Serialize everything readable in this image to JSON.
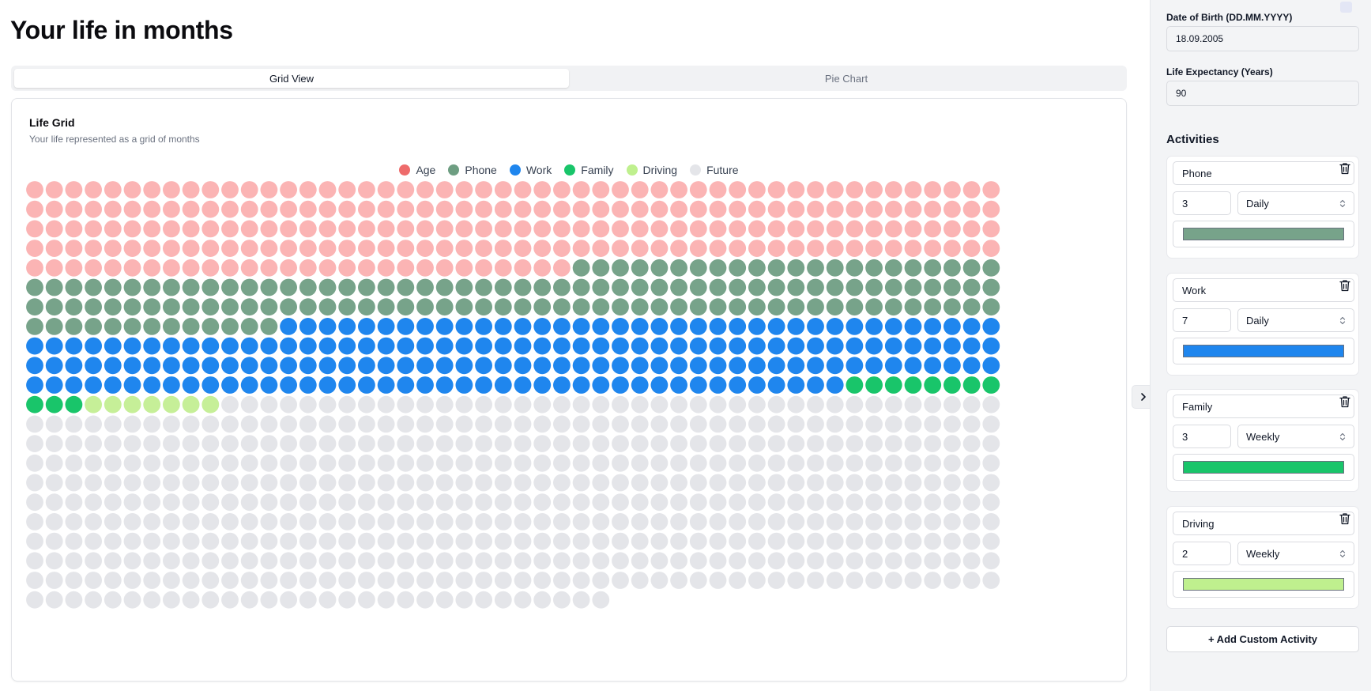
{
  "page": {
    "title": "Your life in months"
  },
  "tabs": [
    {
      "label": "Grid View",
      "active": true
    },
    {
      "label": "Pie Chart",
      "active": false
    }
  ],
  "card": {
    "title": "Life Grid",
    "subtitle": "Your life represented as a grid of months"
  },
  "legend": [
    {
      "label": "Age",
      "color": "#ee6b6b"
    },
    {
      "label": "Phone",
      "color": "#6e9e82"
    },
    {
      "label": "Work",
      "color": "#1f86ee"
    },
    {
      "label": "Family",
      "color": "#19c56a"
    },
    {
      "label": "Driving",
      "color": "#bff08e"
    },
    {
      "label": "Future",
      "color": "#e4e5e9"
    }
  ],
  "chart_data": {
    "type": "waffle",
    "columns": 50,
    "total_months": 1080,
    "segments": [
      {
        "name": "Age",
        "months": 228,
        "color": "#fbb4b4"
      },
      {
        "name": "Phone",
        "months": 135,
        "color": "#77a38a"
      },
      {
        "name": "Work",
        "months": 179,
        "color": "#1f86ee"
      },
      {
        "name": "Family",
        "months": 11,
        "color": "#19c56a"
      },
      {
        "name": "Driving",
        "months": 7,
        "color": "#c6ef98"
      },
      {
        "name": "Future",
        "months": 520,
        "color": "#e4e5e9"
      }
    ]
  },
  "sidebar": {
    "dob": {
      "label": "Date of Birth (DD.MM.YYYY)",
      "value": "18.09.2005"
    },
    "life_expectancy": {
      "label": "Life Expectancy (Years)",
      "value": "90"
    },
    "activities_title": "Activities",
    "activities": [
      {
        "name": "Phone",
        "amount": "3",
        "frequency": "Daily",
        "color": "#77a38a"
      },
      {
        "name": "Work",
        "amount": "7",
        "frequency": "Daily",
        "color": "#1f86ee"
      },
      {
        "name": "Family",
        "amount": "3",
        "frequency": "Weekly",
        "color": "#19c56a"
      },
      {
        "name": "Driving",
        "amount": "2",
        "frequency": "Weekly",
        "color": "#bff08e"
      }
    ],
    "add_button": "+ Add Custom Activity"
  }
}
